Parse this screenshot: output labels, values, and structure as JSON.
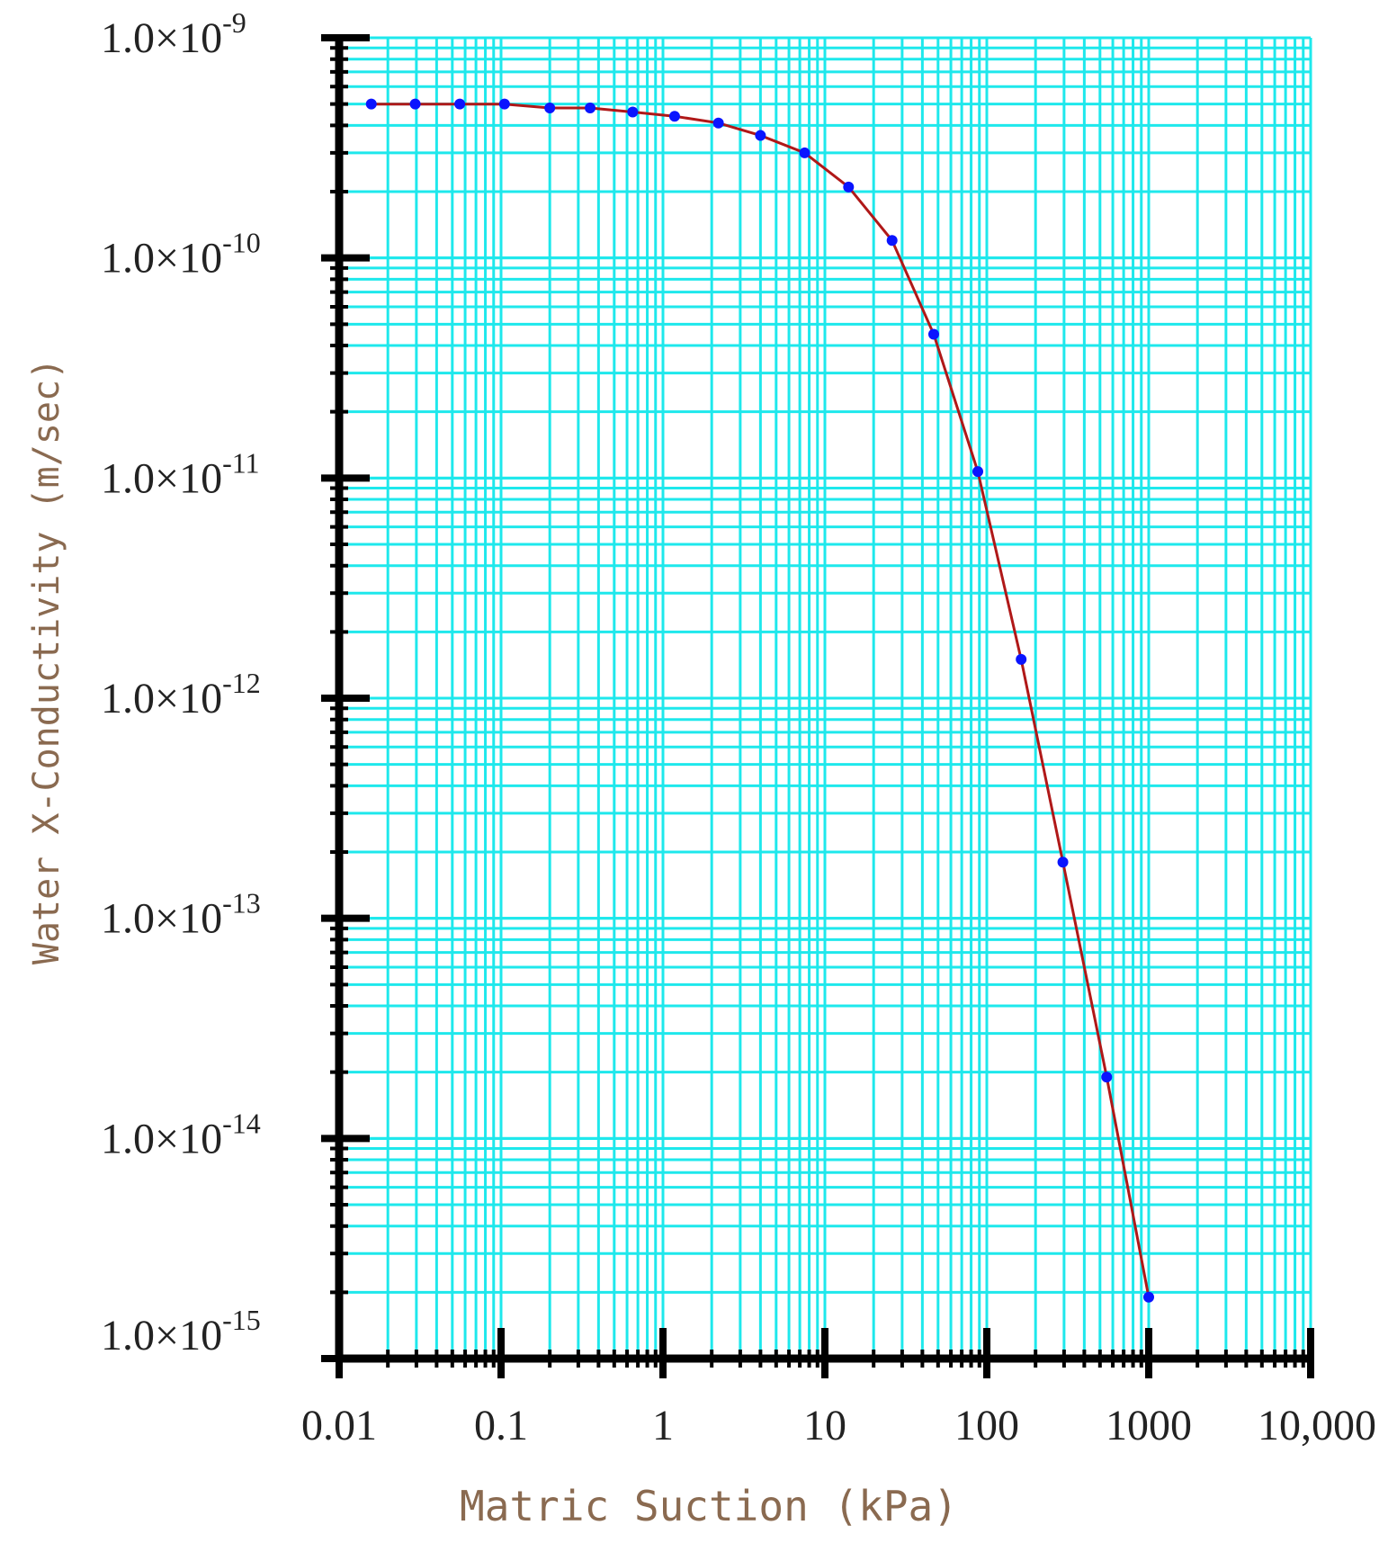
{
  "chart_data": {
    "type": "line",
    "xlabel": "Matric Suction (kPa)",
    "ylabel": "Water X-Conductivity (m/sec)",
    "x_scale": "log",
    "y_scale": "log",
    "xlim": [
      0.01,
      10000
    ],
    "ylim": [
      1e-15,
      1e-09
    ],
    "grid": true,
    "x_ticks": [
      {
        "value": 0.01,
        "label": "0.01"
      },
      {
        "value": 0.1,
        "label": "0.1"
      },
      {
        "value": 1,
        "label": "1"
      },
      {
        "value": 10,
        "label": "10"
      },
      {
        "value": 100,
        "label": "100"
      },
      {
        "value": 1000,
        "label": "1000"
      },
      {
        "value": 10000,
        "label": "10,000"
      }
    ],
    "y_ticks": [
      {
        "value": 1e-09,
        "mantissa": "1.0×10",
        "exponent": "-9"
      },
      {
        "value": 1e-10,
        "mantissa": "1.0×10",
        "exponent": "-10"
      },
      {
        "value": 1e-11,
        "mantissa": "1.0×10",
        "exponent": "-11"
      },
      {
        "value": 1e-12,
        "mantissa": "1.0×10",
        "exponent": "-12"
      },
      {
        "value": 1e-13,
        "mantissa": "1.0×10",
        "exponent": "-13"
      },
      {
        "value": 1e-14,
        "mantissa": "1.0×10",
        "exponent": "-14"
      },
      {
        "value": 1e-15,
        "mantissa": "1.0×10",
        "exponent": "-15"
      }
    ],
    "series": [
      {
        "color": "#0a14ff",
        "line_color": "#b01818",
        "x": [
          0.0158,
          0.0295,
          0.0556,
          0.105,
          0.2,
          0.355,
          0.65,
          1.18,
          2.2,
          4.0,
          7.5,
          14,
          26,
          47,
          88,
          163,
          295,
          550,
          1000
        ],
        "y": [
          5e-10,
          5e-10,
          5e-10,
          5e-10,
          4.8e-10,
          4.8e-10,
          4.6e-10,
          4.4e-10,
          4.1e-10,
          3.6e-10,
          3e-10,
          2.1e-10,
          1.2e-10,
          4.5e-11,
          1.07e-11,
          1.5e-12,
          1.8e-13,
          1.9e-14,
          1.9e-15
        ]
      }
    ]
  },
  "colors": {
    "grid": "#1ee8ec",
    "axis": "#000000",
    "axis_title": "#8a6a50"
  }
}
